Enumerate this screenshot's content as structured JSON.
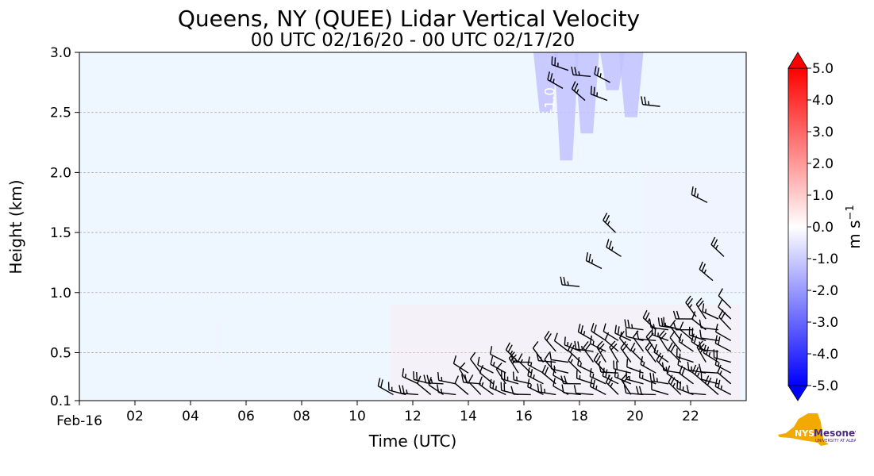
{
  "chart_data": {
    "type": "heatmap",
    "title": "Queens, NY (QUEE) Lidar Vertical Velocity",
    "subtitle": "00 UTC 02/16/20 - 00 UTC 02/17/20",
    "xlabel": "Time (UTC)",
    "ylabel": "Height (km)",
    "xlim": [
      0,
      24
    ],
    "ylim": [
      0.1,
      3.0
    ],
    "x_ticks": [
      0,
      2,
      4,
      6,
      8,
      10,
      12,
      14,
      16,
      18,
      20,
      22
    ],
    "x_tick_labels": [
      "Feb-16",
      "02",
      "04",
      "06",
      "08",
      "10",
      "12",
      "14",
      "16",
      "18",
      "20",
      "22"
    ],
    "y_ticks": [
      0.1,
      0.5,
      1.0,
      1.5,
      2.0,
      2.5,
      3.0
    ],
    "y_tick_labels": [
      "0.1",
      "0.5",
      "1.0",
      "1.5",
      "2.0",
      "2.5",
      "3.0"
    ],
    "grid": "y-dashed",
    "colorbar": {
      "label_base": "m s",
      "label_exp": "−1",
      "min": -5.0,
      "max": 5.0,
      "ticks": [
        5,
        4,
        3,
        2,
        1,
        0,
        -1,
        -2,
        -3,
        -4,
        -5
      ],
      "tick_labels": [
        "5.0",
        "4.0",
        "3.0",
        "2.0",
        "1.0",
        "0.0",
        "-1.0",
        "-2.0",
        "-3.0",
        "-4.0",
        "-5.0"
      ],
      "colors": [
        "#0000ff",
        "#ffffff",
        "#ff0000"
      ],
      "extend": "both"
    },
    "background_value_color": "#eef6ff",
    "contour_label": "-1.0",
    "features": [
      {
        "kind": "downdraft",
        "time": [
          16.6,
          20.3
        ],
        "height": [
          2.1,
          3.0
        ],
        "value": -1.2
      },
      {
        "kind": "downdraft",
        "time": [
          20.3,
          23.8
        ],
        "height": [
          1.0,
          2.0
        ],
        "value": -0.3
      },
      {
        "kind": "updraft",
        "time": [
          11.2,
          23.8
        ],
        "height": [
          0.1,
          0.9
        ],
        "value": 0.4
      },
      {
        "kind": "small",
        "time": [
          4.9,
          5.1
        ],
        "height": [
          0.45,
          0.75
        ],
        "value": -0.3
      }
    ],
    "wind_barbs_layers": [
      {
        "time_start": 11.3,
        "time_end": 23.8,
        "height_start": 0.1,
        "height_end_left": 0.2,
        "height_end_right": 0.9,
        "speed": 15,
        "direction": 300
      }
    ]
  },
  "logo": {
    "nys": "NYS",
    "mesonet": "Mesonet",
    "ua": "UNIVERSITY AT ALBANY"
  }
}
